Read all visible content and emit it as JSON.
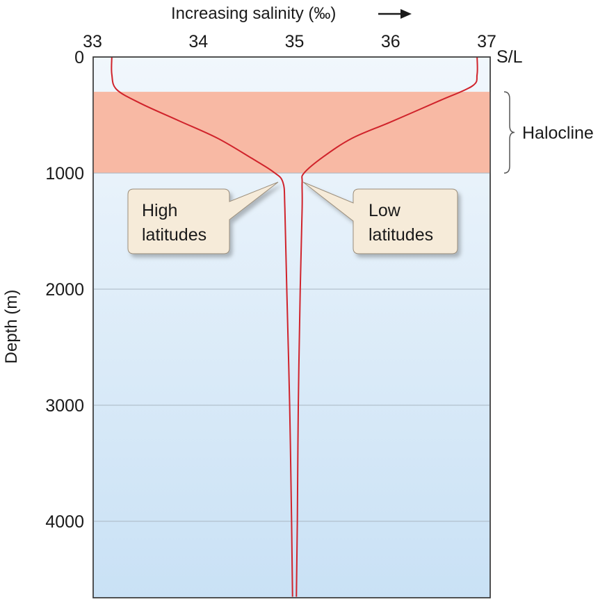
{
  "chart_data": {
    "type": "line",
    "title": "",
    "xlabel": "Increasing salinity (‰)",
    "ylabel": "Depth (m)",
    "x_axis_position": "top",
    "y_axis_inverted": true,
    "xlim": [
      33,
      37
    ],
    "ylim": [
      0,
      4650
    ],
    "x_ticks": [
      33,
      34,
      35,
      36,
      37
    ],
    "x_tick_labels": [
      "33",
      "34",
      "35",
      "36",
      "37"
    ],
    "y_ticks": [
      0,
      1000,
      2000,
      3000,
      4000
    ],
    "y_tick_labels": [
      "0",
      "1000",
      "2000",
      "3000",
      "4000"
    ],
    "surface_label": "S/L",
    "grid": "horizontal",
    "halocline": {
      "label": "Halocline",
      "depth_range": [
        300,
        1000
      ],
      "color": "#f8b9a4"
    },
    "line_color": "#d0232b",
    "background_top": "#f1f7fc",
    "background_bottom": "#c9e1f5",
    "series": [
      {
        "name": "High latitudes",
        "points": [
          [
            33.1,
            0
          ],
          [
            33.1,
            150
          ],
          [
            33.15,
            280
          ],
          [
            33.4,
            400
          ],
          [
            33.8,
            550
          ],
          [
            34.2,
            700
          ],
          [
            34.55,
            870
          ],
          [
            34.78,
            990
          ],
          [
            34.88,
            1080
          ],
          [
            34.9,
            1300
          ],
          [
            34.92,
            2000
          ],
          [
            34.95,
            3000
          ],
          [
            34.97,
            4000
          ],
          [
            34.98,
            4650
          ]
        ]
      },
      {
        "name": "Low latitudes",
        "points": [
          [
            36.9,
            0
          ],
          [
            36.9,
            150
          ],
          [
            36.85,
            250
          ],
          [
            36.5,
            380
          ],
          [
            36.0,
            560
          ],
          [
            35.6,
            700
          ],
          [
            35.3,
            860
          ],
          [
            35.1,
            1000
          ],
          [
            35.08,
            1080
          ],
          [
            35.08,
            1300
          ],
          [
            35.06,
            2000
          ],
          [
            35.04,
            3000
          ],
          [
            35.03,
            4000
          ],
          [
            35.02,
            4650
          ]
        ]
      }
    ]
  }
}
